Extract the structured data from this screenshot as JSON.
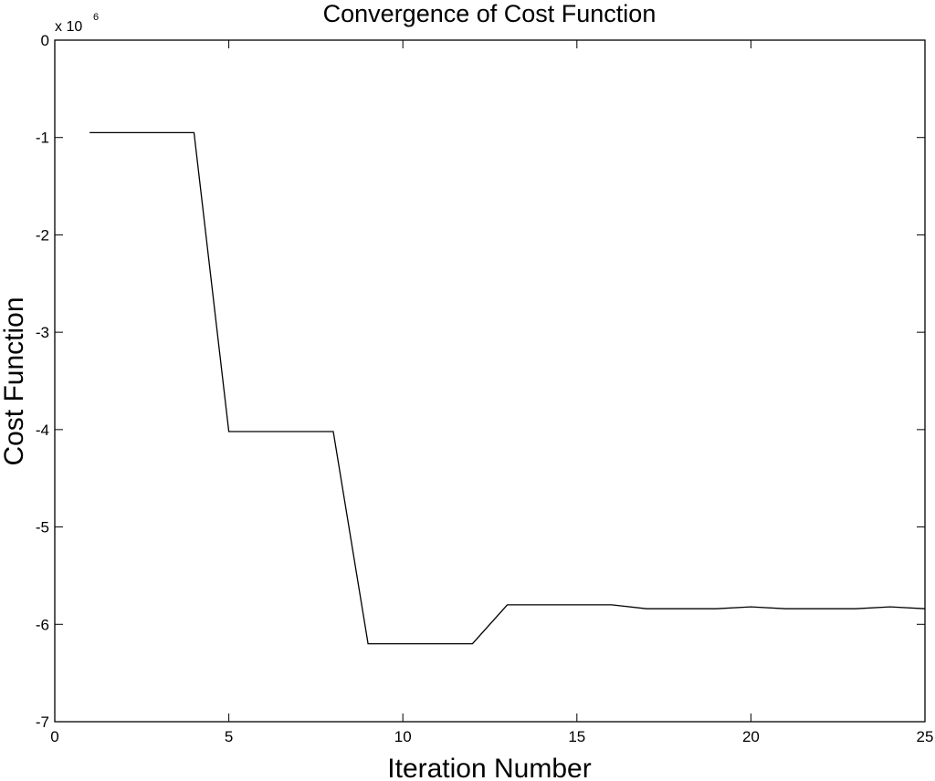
{
  "chart_data": {
    "type": "line",
    "title": "Convergence of Cost Function",
    "xlabel": "Iteration Number",
    "ylabel": "Cost Function",
    "y_multiplier": "x 10",
    "y_multiplier_exponent": "6",
    "xlim": [
      0,
      25
    ],
    "ylim": [
      -7,
      0
    ],
    "xticks": [
      0,
      5,
      10,
      15,
      20,
      25
    ],
    "yticks": [
      -7,
      -6,
      -5,
      -4,
      -3,
      -2,
      -1,
      0
    ],
    "xtick_labels": [
      "0",
      "5",
      "10",
      "15",
      "20",
      "25"
    ],
    "ytick_labels": [
      "-7",
      "-6",
      "-5",
      "-4",
      "-3",
      "-2",
      "-1",
      "0"
    ],
    "grid": false,
    "series": [
      {
        "x": [
          1,
          2,
          3,
          4,
          5,
          6,
          7,
          8,
          9,
          10,
          11,
          12,
          13,
          14,
          15,
          16,
          17,
          18,
          19,
          20,
          21,
          22,
          23,
          24,
          25
        ],
        "y": [
          -0.95,
          -0.95,
          -0.95,
          -0.95,
          -4.02,
          -4.02,
          -4.02,
          -4.02,
          -6.2,
          -6.2,
          -6.2,
          -6.2,
          -5.8,
          -5.8,
          -5.8,
          -5.8,
          -5.84,
          -5.84,
          -5.84,
          -5.82,
          -5.84,
          -5.84,
          -5.84,
          -5.82,
          -5.84
        ],
        "color": "#000000"
      }
    ]
  }
}
